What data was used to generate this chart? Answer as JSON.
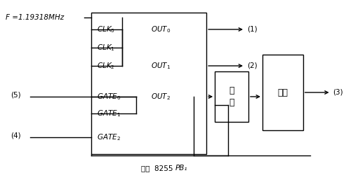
{
  "bg_color": "#ffffff",
  "fig_width": 4.93,
  "fig_height": 2.57,
  "dpi": 100,
  "freq_label": "F =1.19318MHz",
  "bottom_label": "来自  8255",
  "bottom_label2": "PB₁",
  "and_label": "与\n门",
  "filter_label": "滤波",
  "line_color": "#000000",
  "font_size": 8,
  "font_size_small": 7.5
}
